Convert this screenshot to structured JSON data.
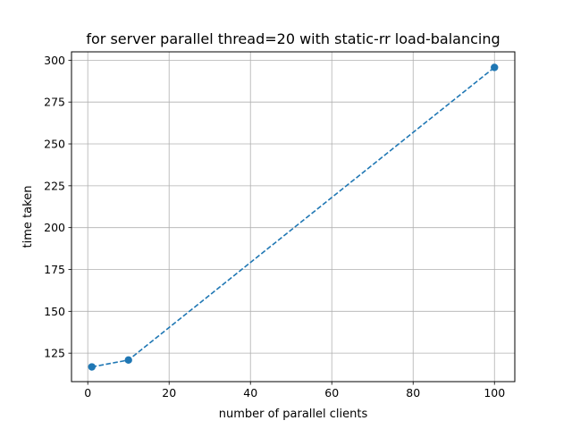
{
  "chart_data": {
    "type": "line",
    "title": "for server parallel thread=20 with static-rr load-balancing",
    "xlabel": "number of parallel clients",
    "ylabel": "time taken",
    "xlim": [
      -4,
      105
    ],
    "ylim": [
      108,
      305
    ],
    "xticks": [
      0,
      20,
      40,
      60,
      80,
      100
    ],
    "yticks": [
      125,
      150,
      175,
      200,
      225,
      250,
      275,
      300
    ],
    "grid": true,
    "line_style": "dashed",
    "marker": "circle",
    "series": [
      {
        "x": [
          1,
          10,
          100
        ],
        "y": [
          116.8,
          120.9,
          295.7
        ],
        "color": "#1f77b4"
      }
    ]
  }
}
